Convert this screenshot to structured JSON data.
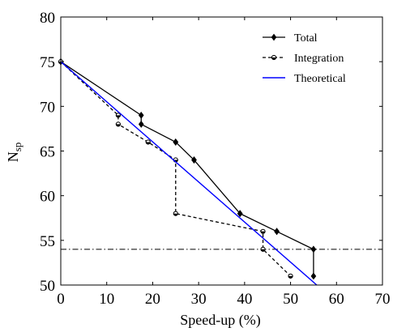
{
  "chart_data": {
    "type": "line",
    "xlabel": "Speed-up (%)",
    "ylabel": {
      "main": "N",
      "sub": "sp"
    },
    "xlim": [
      0,
      70
    ],
    "ylim": [
      50,
      80
    ],
    "xticks": [
      0,
      10,
      20,
      30,
      40,
      50,
      60,
      70
    ],
    "yticks": [
      50,
      55,
      60,
      65,
      70,
      75,
      80
    ],
    "grid": false,
    "legend_position": "top-right",
    "series": [
      {
        "name": "Total",
        "style": "solid",
        "color": "#000000",
        "marker": "diamond-filled",
        "x": [
          0,
          17.5,
          17.5,
          25,
          25,
          29,
          29,
          39,
          39,
          47,
          47,
          55,
          55
        ],
        "y": [
          75,
          69,
          68,
          66,
          66,
          64,
          64,
          58,
          58,
          56,
          56,
          54,
          51
        ]
      },
      {
        "name": "Integration",
        "style": "dashed",
        "color": "#000000",
        "marker": "circle-half-filled",
        "x": [
          0,
          12.5,
          12.5,
          19,
          25,
          25,
          44,
          44,
          50
        ],
        "y": [
          75,
          69,
          68,
          66,
          64,
          58,
          56,
          54,
          51
        ]
      },
      {
        "name": "Theoretical",
        "style": "solid",
        "color": "#0000ff",
        "marker": "none",
        "x": [
          0,
          55.7
        ],
        "y": [
          75,
          50
        ]
      }
    ],
    "reference_lines": [
      {
        "axis": "y",
        "value": 54,
        "style": "dashdot",
        "color": "#000000"
      }
    ]
  }
}
